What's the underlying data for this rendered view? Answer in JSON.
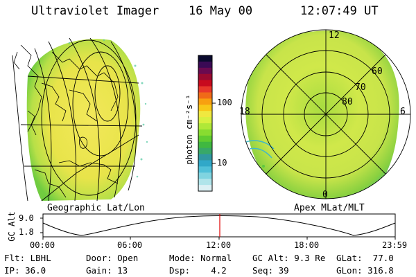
{
  "header": {
    "instrument": "Ultraviolet Imager",
    "date": "16 May 00",
    "time": "12:07:49 UT"
  },
  "left_panel": {
    "caption": "Geographic Lat/Lon"
  },
  "right_panel": {
    "caption": "Apex MLat/MLT",
    "mlt_labels": {
      "top": "12",
      "left": "18",
      "right": "6",
      "bottom": "0"
    },
    "lat_labels": [
      "60",
      "70",
      "80"
    ]
  },
  "colorbar": {
    "unit_label": "photon cm⁻²s⁻¹",
    "tick_labels": [
      "100",
      "10"
    ],
    "colors": [
      "#0a0a2e",
      "#3a0a55",
      "#6a0a50",
      "#9a0a30",
      "#c80a1e",
      "#e8382a",
      "#f06a18",
      "#f8a010",
      "#f8c818",
      "#f0e840",
      "#d8f040",
      "#b0e838",
      "#88dc30",
      "#60cc30",
      "#40b840",
      "#38a868",
      "#3098a0",
      "#30a8c8",
      "#50c0d8",
      "#80d4e0",
      "#b0e4ea",
      "#dcf0f4"
    ]
  },
  "timeline": {
    "axis_label": "GC Alt",
    "y_ticks": [
      "9.0",
      "1.8"
    ],
    "x_ticks": [
      "00:00",
      "06:00",
      "12:00",
      "18:00",
      "23:59"
    ]
  },
  "info": {
    "flt": "Flt: LBHL",
    "door": "Door: Open",
    "mode": "Mode: Normal",
    "gc_alt": "GC Alt: 9.3 Re",
    "glat": "GLat:  77.0",
    "ip": "IP: 36.0",
    "gain": "Gain: 13",
    "dsp": "Dsp:    4.2",
    "seq": "Seq: 39",
    "glon": "GLon: 316.8"
  }
}
